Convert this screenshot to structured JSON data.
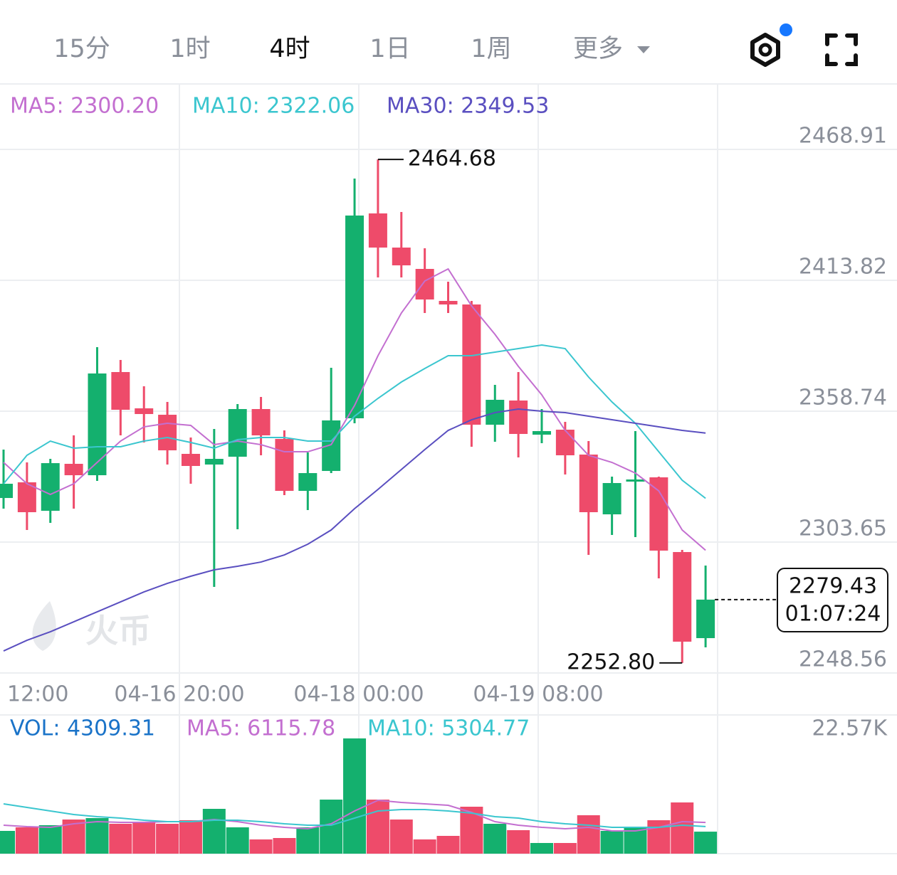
{
  "tabs": [
    "15分",
    "1时",
    "4时",
    "1日",
    "1周",
    "更多"
  ],
  "active_tab": 2,
  "watermark": "火币",
  "chart_data": {
    "type": "candlestick",
    "up_color": "#14b06e",
    "down_color": "#ee4b6a",
    "xlabels": [
      "12:00",
      "04-16 20:00",
      "04-18 00:00",
      "04-19 08:00"
    ],
    "open": [
      2322.2,
      2328.79,
      2316.81,
      2336.58,
      2331.78,
      2375.2,
      2359.93,
      2357.23,
      2340.77,
      2336.28,
      2339.57,
      2359.63,
      2347.05,
      2325.2,
      2333.58,
      2355.74,
      2441.96,
      2427.59,
      2418.61,
      2405.14,
      2403.64,
      2353.04,
      2363.22,
      2348.85,
      2350.95,
      2340.47,
      2315.32,
      2329.09,
      2330.89,
      2299.45,
      2263.22
    ],
    "high": [
      2342.56,
      2337.17,
      2338.67,
      2348.55,
      2385.68,
      2380.29,
      2369.21,
      2362.62,
      2347.65,
      2351.25,
      2361.72,
      2364.72,
      2350.65,
      2341.37,
      2376.99,
      2456.63,
      2464.68,
      2442.56,
      2427.29,
      2413.22,
      2405.14,
      2369.81,
      2375.2,
      2359.63,
      2354.24,
      2346.16,
      2331.19,
      2350.35,
      2331.19,
      2300.35,
      2293.76
    ],
    "low": [
      2317.71,
      2308.73,
      2311.72,
      2317.71,
      2329.39,
      2348.55,
      2345.56,
      2336.28,
      2328.19,
      2284.78,
      2309.03,
      2340.17,
      2323.4,
      2317.11,
      2332.68,
      2353.64,
      2415.02,
      2415.02,
      2400.05,
      2400.05,
      2343.76,
      2345.86,
      2339.27,
      2345.26,
      2332.08,
      2298.25,
      2306.64,
      2305.74,
      2288.37,
      2252.8,
      2259.33
    ],
    "close": [
      2328.19,
      2316.22,
      2336.87,
      2331.78,
      2374.6,
      2359.33,
      2357.53,
      2342.26,
      2335.68,
      2338.67,
      2359.63,
      2348.55,
      2325.2,
      2332.68,
      2354.84,
      2441.07,
      2427.59,
      2420.11,
      2405.74,
      2403.64,
      2353.04,
      2363.52,
      2349.15,
      2350.35,
      2340.17,
      2316.22,
      2328.49,
      2329.99,
      2300.05,
      2261.73,
      2279.43
    ],
    "series": [
      {
        "name": "MA5",
        "legend": "MA5: 2300.20",
        "color": "#c36fd0",
        "values": [
          2337.17,
          2328.19,
          2323.7,
          2328.19,
          2337.17,
          2346.15,
          2352.14,
          2353.64,
          2352.74,
          2344.65,
          2346.15,
          2344.65,
          2341.66,
          2341.66,
          2344.65,
          2361.12,
          2382.08,
          2400.04,
          2413.52,
          2418.61,
          2403.04,
          2391.06,
          2377.59,
          2365.61,
          2350.64,
          2340.16,
          2337.17,
          2332.68,
          2325.19,
          2308.73,
          2300.2
        ]
      },
      {
        "name": "MA10",
        "legend": "MA10: 2322.06",
        "color": "#3bc6cf",
        "values": [
          2328.19,
          2340.16,
          2346.15,
          2343.16,
          2343.76,
          2343.76,
          2346.15,
          2347.65,
          2345.55,
          2343.16,
          2346.75,
          2347.65,
          2347.65,
          2346.15,
          2346.15,
          2356.63,
          2364.12,
          2371.0,
          2376.69,
          2382.08,
          2382.08,
          2383.58,
          2385.07,
          2386.57,
          2385.07,
          2373.1,
          2362.62,
          2353.64,
          2341.66,
          2329.68,
          2322.06
        ]
      },
      {
        "name": "MA30",
        "legend": "MA30: 2349.53",
        "color": "#5a4fc0",
        "values": [
          2257.83,
          2262.32,
          2265.91,
          2270.1,
          2274.3,
          2278.49,
          2282.68,
          2286.27,
          2289.27,
          2291.96,
          2293.46,
          2295.25,
          2298.25,
          2302.74,
          2308.73,
          2317.71,
          2325.79,
          2334.18,
          2342.56,
          2350.64,
          2355.13,
          2358.13,
          2359.62,
          2358.73,
          2358.13,
          2356.63,
          2355.13,
          2353.64,
          2352.14,
          2350.64,
          2349.53
        ]
      }
    ],
    "ylim": [
      2248.56,
      2496.45
    ],
    "yticks": [
      2468.91,
      2413.82,
      2358.74,
      2303.65,
      2248.56
    ],
    "grid": true,
    "annotations": {
      "high": "2464.68",
      "low": "2252.80"
    },
    "last_price": 2279.43,
    "countdown": "01:07:24",
    "volume": {
      "legend": "VOL: 4309.31",
      "values": [
        4458,
        5154,
        5572,
        6686,
        6965,
        5851,
        6269,
        5851,
        6547,
        8776,
        5154,
        2786,
        3065,
        5154,
        10587,
        22570,
        10587,
        6686,
        2786,
        3483,
        9194,
        5851,
        4597,
        2090,
        2090,
        7522,
        4458,
        5015,
        6547,
        10030,
        4309.31
      ],
      "ylim": [
        0,
        22570
      ],
      "yticks": [
        {
          "value": 22570,
          "label": "22.57K"
        }
      ],
      "series": [
        {
          "name": "MA5",
          "legend": "MA5: 6115.78",
          "color": "#c36fd0",
          "values": [
            5573,
            5294,
            5155,
            5851,
            6269,
            6130,
            6130,
            6269,
            6269,
            6687,
            6269,
            5573,
            5155,
            4876,
            5851,
            8359,
            10449,
            10031,
            9752,
            9474,
            8081,
            6269,
            5573,
            5155,
            4876,
            5155,
            4458,
            4458,
            5155,
            6269,
            6115.78
          ]
        },
        {
          "name": "MA10",
          "legend": "MA10: 5304.77",
          "color": "#3bc6cf",
          "values": [
            9752,
            9056,
            8359,
            7663,
            7245,
            6966,
            6548,
            6269,
            6269,
            6548,
            6548,
            6269,
            5851,
            5573,
            5573,
            6966,
            8359,
            8638,
            8638,
            8359,
            7941,
            7245,
            6966,
            6269,
            5851,
            5573,
            5155,
            5155,
            5155,
            5573,
            5304.77
          ]
        }
      ]
    }
  }
}
